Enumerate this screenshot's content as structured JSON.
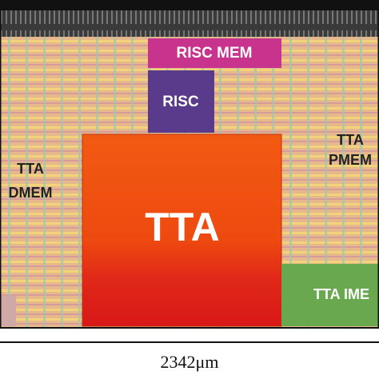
{
  "blocks": {
    "risc_mem": {
      "label": "RISC MEM"
    },
    "risc": {
      "label": "RISC"
    },
    "tta": {
      "label": "TTA"
    },
    "tta_pmem": {
      "lines": [
        "TTA",
        "PMEM"
      ]
    },
    "tta_dmem": {
      "lines": [
        "TTA",
        "DMEM"
      ]
    },
    "tta_imem": {
      "label": "TTA IME"
    }
  },
  "dimension": "2342μm"
}
